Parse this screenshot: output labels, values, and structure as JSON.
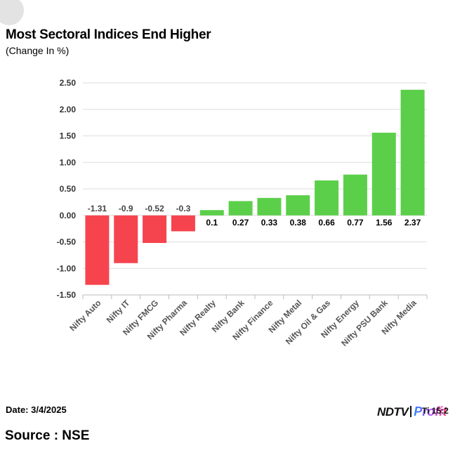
{
  "header": {
    "title": "Most Sectoral Indices End Higher",
    "subtitle": "(Change In %)"
  },
  "footer": {
    "date": "Date: 3/4/2025",
    "source": "Source : NSE",
    "logo_ndtv": "NDTV",
    "logo_profit": "Profit",
    "logo_time_fragment": "Ti  15:2"
  },
  "colors": {
    "positive": "#5ccf4a",
    "negative": "#f6444e",
    "grid": "#dddddd",
    "axis": "#bbbbbb"
  },
  "chart_data": {
    "type": "bar",
    "title": "Most Sectoral Indices End Higher",
    "subtitle": "(Change In %)",
    "categories": [
      "Nifty Auto",
      "Nifty IT",
      "Nifty FMCG",
      "Nifty Pharma",
      "Nifty Realty",
      "Nifty Bank",
      "Nifty Finance",
      "Nifty Metal",
      "Nifty Oil & Gas",
      "Nifty Energy",
      "Nifty PSU Bank",
      "Nifty Media"
    ],
    "values": [
      -1.31,
      -0.9,
      -0.52,
      -0.3,
      0.1,
      0.27,
      0.33,
      0.38,
      0.66,
      0.77,
      1.56,
      2.37
    ],
    "data_labels": [
      "-1.31",
      "-0.9",
      "-0.52",
      "-0.3",
      "0.1",
      "0.27",
      "0.33",
      "0.38",
      "0.66",
      "0.77",
      "1.56",
      "2.37"
    ],
    "yticks": [
      "2.50",
      "2.00",
      "1.50",
      "1.00",
      "0.50",
      "0.00",
      "-0.50",
      "-1.00",
      "-1.50"
    ],
    "ylim": [
      -1.5,
      2.5
    ],
    "xlabel": "",
    "ylabel": "",
    "grid": true,
    "legend": "none"
  }
}
